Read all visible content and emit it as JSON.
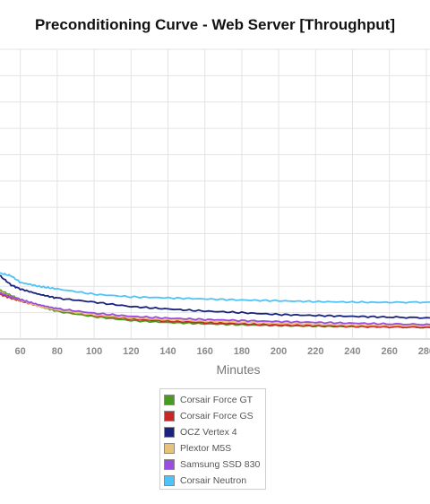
{
  "chart_data": {
    "type": "line",
    "title": "Preconditioning Curve - Web Server [Throughput]",
    "xlabel": "Minutes",
    "ylabel": "",
    "xlim": [
      49,
      282
    ],
    "ylim": [
      0,
      110
    ],
    "x_ticks": [
      60,
      80,
      100,
      120,
      140,
      160,
      180,
      200,
      220,
      240,
      260,
      280
    ],
    "grid": true,
    "legend_position": "bottom-center",
    "series": [
      {
        "name": "Corsair Force GT",
        "color": "#4a9a1f",
        "x": [
          49,
          55,
          60,
          70,
          80,
          100,
          120,
          140,
          160,
          180,
          200,
          220,
          240,
          260,
          282
        ],
        "y": [
          18.5,
          16.5,
          15,
          12.5,
          10.5,
          8.5,
          7,
          6.3,
          5.8,
          5.4,
          5.1,
          4.9,
          4.7,
          4.6,
          4.5
        ]
      },
      {
        "name": "Corsair Force GS",
        "color": "#c62828",
        "x": [
          49,
          55,
          60,
          70,
          80,
          100,
          120,
          140,
          160,
          180,
          200,
          220,
          240,
          260,
          282
        ],
        "y": [
          17,
          15.5,
          14.5,
          12.5,
          11,
          9,
          7.6,
          6.8,
          6.2,
          5.7,
          5.3,
          5,
          4.8,
          4.6,
          4.4
        ]
      },
      {
        "name": "OCZ Vertex 4",
        "color": "#1a237e",
        "x": [
          49,
          55,
          60,
          70,
          80,
          100,
          120,
          140,
          160,
          180,
          200,
          220,
          240,
          260,
          282
        ],
        "y": [
          24,
          20.5,
          19,
          17,
          15.5,
          14,
          12.3,
          11.4,
          10.6,
          10,
          9.3,
          8.9,
          8.6,
          8.3,
          8
        ]
      },
      {
        "name": "Plextor M5S",
        "color": "#e9c27a",
        "x": [
          49,
          55,
          60,
          70,
          80,
          100,
          120,
          140,
          160,
          180,
          200,
          220,
          240,
          260,
          282
        ],
        "y": [
          18,
          16,
          14.8,
          12.5,
          11,
          9.2,
          8,
          7.3,
          6.8,
          6.4,
          6,
          5.6,
          5.3,
          5.1,
          5
        ]
      },
      {
        "name": "Samsung SSD 830",
        "color": "#9b4de0",
        "x": [
          49,
          55,
          60,
          70,
          80,
          100,
          120,
          140,
          160,
          180,
          200,
          220,
          240,
          260,
          282
        ],
        "y": [
          17.5,
          16,
          15,
          13,
          11.5,
          9.8,
          8.6,
          7.9,
          7.4,
          7,
          6.6,
          6.3,
          6,
          5.7,
          5.5
        ]
      },
      {
        "name": "Corsair Neutron",
        "color": "#4fc3f7",
        "x": [
          49,
          55,
          60,
          70,
          80,
          100,
          120,
          140,
          160,
          180,
          200,
          220,
          240,
          260,
          282
        ],
        "y": [
          25,
          24,
          21.5,
          20,
          19,
          17,
          16,
          15.6,
          15.2,
          14.8,
          14.5,
          14.2,
          14,
          13.9,
          14
        ]
      }
    ]
  }
}
